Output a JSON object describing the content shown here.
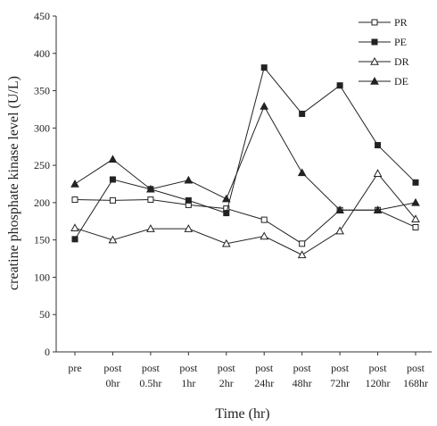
{
  "chart_data": {
    "type": "line",
    "xlabel": "Time (hr)",
    "ylabel": "creatine phosphate kinase level  (U/L)",
    "ylim": [
      0,
      450
    ],
    "yticks": [
      0,
      50,
      100,
      150,
      200,
      250,
      300,
      350,
      400,
      450
    ],
    "categories": [
      [
        "pre",
        ""
      ],
      [
        "post",
        "0hr"
      ],
      [
        "post",
        "0.5hr"
      ],
      [
        "post",
        "1hr"
      ],
      [
        "post",
        "2hr"
      ],
      [
        "post",
        "24hr"
      ],
      [
        "post",
        "48hr"
      ],
      [
        "post",
        "72hr"
      ],
      [
        "post",
        "120hr"
      ],
      [
        "post",
        "168hr"
      ]
    ],
    "legend_position": "top-right",
    "series": [
      {
        "name": "PR",
        "marker": "open-square",
        "color": "#222222",
        "values": [
          204,
          203,
          204,
          197,
          192,
          177,
          145,
          190,
          190,
          167
        ]
      },
      {
        "name": "PE",
        "marker": "filled-square",
        "color": "#222222",
        "values": [
          151,
          231,
          218,
          203,
          186,
          381,
          319,
          357,
          277,
          227
        ]
      },
      {
        "name": "DR",
        "marker": "open-triangle",
        "color": "#222222",
        "values": [
          166,
          150,
          165,
          165,
          145,
          155,
          130,
          162,
          239,
          178
        ]
      },
      {
        "name": "DE",
        "marker": "filled-triangle",
        "color": "#222222",
        "values": [
          225,
          258,
          218,
          230,
          205,
          329,
          240,
          190,
          190,
          200
        ]
      }
    ]
  }
}
